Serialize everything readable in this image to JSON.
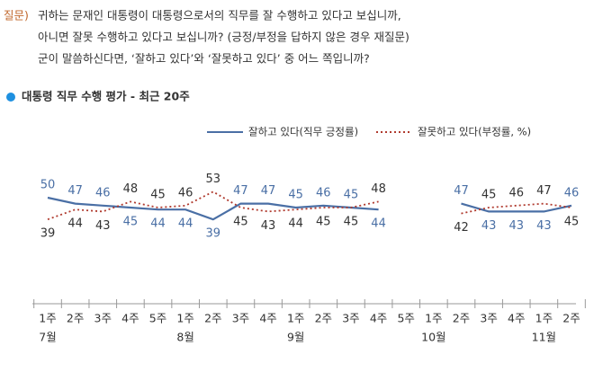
{
  "question": {
    "label": "질문)",
    "lines": [
      "귀하는 문재인 대통령이 대통령으로서의 직무를 잘 수행하고 있다고 보십니까,",
      "아니면 잘못 수행하고 있다고 보십니까? (긍정/부정을 답하지 않은 경우 재질문)",
      "군이 말씀하신다면, ‘잘하고 있다’와 ‘잘못하고 있다’ 중 어느 쪽입니까?"
    ]
  },
  "chart_data": {
    "type": "line",
    "title": "대통령 직무 수행 평가 - 최근 20주",
    "categories": [
      "1주",
      "2주",
      "3주",
      "4주",
      "5주",
      "1주",
      "2주",
      "3주",
      "4주",
      "1주",
      "2주",
      "3주",
      "4주",
      "5주",
      "1주",
      "2주",
      "3주",
      "4주",
      "1주",
      "2주"
    ],
    "months": [
      "7월",
      null,
      null,
      null,
      null,
      "8월",
      null,
      null,
      null,
      "9월",
      null,
      null,
      null,
      null,
      "10월",
      null,
      null,
      null,
      "11월",
      null
    ],
    "series": [
      {
        "name": "잘하고 있다(직무 긍정률)",
        "color": "#4a6fa5",
        "style": "solid",
        "values": [
          50,
          47,
          46,
          45,
          44,
          44,
          39,
          47,
          47,
          45,
          46,
          45,
          44,
          null,
          null,
          47,
          43,
          43,
          43,
          46
        ]
      },
      {
        "name": "잘못하고 있다(부정률, %)",
        "color": "#b03a2e",
        "style": "dotted",
        "values": [
          39,
          44,
          43,
          48,
          45,
          46,
          53,
          45,
          43,
          44,
          45,
          45,
          48,
          null,
          null,
          42,
          45,
          46,
          47,
          45
        ]
      }
    ]
  }
}
